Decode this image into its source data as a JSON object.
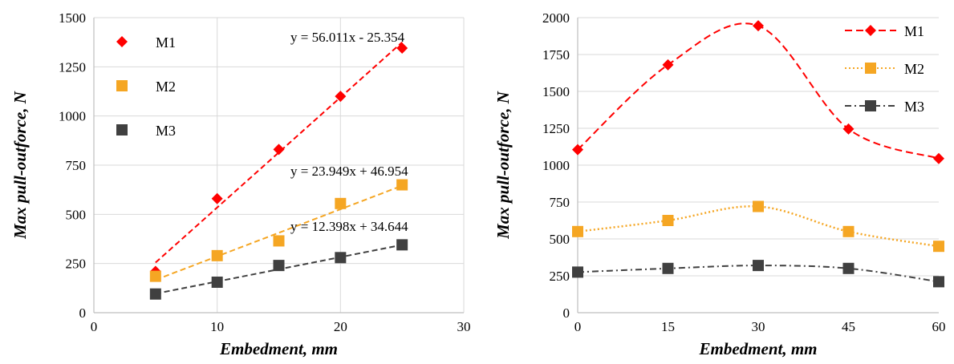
{
  "chart_data": [
    {
      "type": "scatter",
      "xlabel": "Embedment, mm",
      "ylabel": "Max pull-outforce, N",
      "xlim": [
        0,
        30
      ],
      "ylim": [
        0,
        1500
      ],
      "xticks": [
        0,
        10,
        20,
        30
      ],
      "yticks": [
        0,
        250,
        500,
        750,
        1000,
        1250,
        1500
      ],
      "grid": true,
      "legend_position": "top-left",
      "series": [
        {
          "name": "M1",
          "color": "#ff0000",
          "marker": "diamond",
          "x": [
            5,
            10,
            15,
            20,
            25
          ],
          "y": [
            210,
            580,
            830,
            1100,
            1345
          ],
          "trendline": {
            "slope": 56.011,
            "intercept": -25.354,
            "equation": "y = 56.011x - 25.354"
          }
        },
        {
          "name": "M2",
          "color": "#f5a623",
          "marker": "square",
          "x": [
            5,
            10,
            15,
            20,
            25
          ],
          "y": [
            185,
            290,
            365,
            555,
            650
          ],
          "trendline": {
            "slope": 23.949,
            "intercept": 46.954,
            "equation": "y = 23.949x + 46.954"
          }
        },
        {
          "name": "M3",
          "color": "#404040",
          "marker": "square",
          "x": [
            5,
            10,
            15,
            20,
            25
          ],
          "y": [
            95,
            155,
            240,
            280,
            345
          ],
          "trendline": {
            "slope": 12.398,
            "intercept": 34.644,
            "equation": "y = 12.398x + 34.644"
          }
        }
      ]
    },
    {
      "type": "line",
      "xlabel": "Embedment, mm",
      "ylabel": "Max pull-outforce, N",
      "xlim": [
        0,
        60
      ],
      "ylim": [
        0,
        2000
      ],
      "xticks": [
        0,
        15,
        30,
        45,
        60
      ],
      "yticks": [
        0,
        250,
        500,
        750,
        1000,
        1250,
        1500,
        1750,
        2000
      ],
      "grid": true,
      "legend_position": "top-right",
      "series": [
        {
          "name": "M1",
          "color": "#ff0000",
          "marker": "diamond",
          "dash": "dashed",
          "x": [
            0,
            15,
            30,
            45,
            60
          ],
          "y": [
            1105,
            1680,
            1945,
            1245,
            1045
          ]
        },
        {
          "name": "M2",
          "color": "#f5a623",
          "marker": "square",
          "dash": "dotted",
          "x": [
            0,
            15,
            30,
            45,
            60
          ],
          "y": [
            550,
            625,
            720,
            550,
            450
          ]
        },
        {
          "name": "M3",
          "color": "#404040",
          "marker": "square",
          "dash": "dashdot",
          "x": [
            0,
            15,
            30,
            45,
            60
          ],
          "y": [
            275,
            300,
            320,
            300,
            210
          ]
        }
      ]
    }
  ]
}
